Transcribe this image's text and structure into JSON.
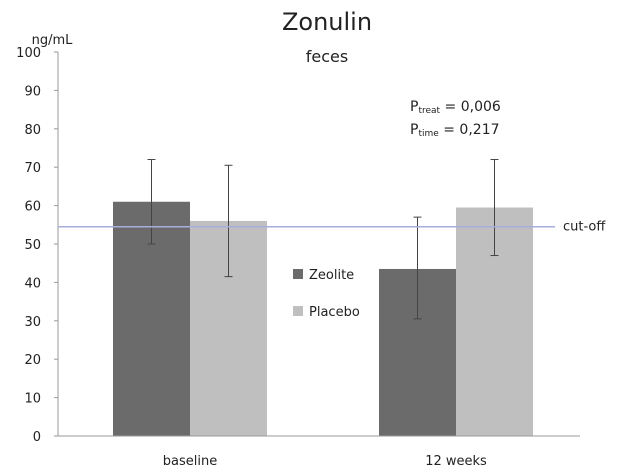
{
  "chart_data": {
    "type": "bar",
    "title": "Zonulin",
    "subtitle": "feces",
    "ylabel": "ng/mL",
    "xlabel": "",
    "ylim": [
      0,
      100
    ],
    "yticks": [
      0,
      10,
      20,
      30,
      40,
      50,
      60,
      70,
      80,
      90,
      100
    ],
    "categories": [
      "baseline",
      "12 weeks"
    ],
    "series": [
      {
        "name": "Zeolite",
        "color": "#6b6b6b",
        "values": [
          61,
          43.5
        ],
        "error_low": [
          50,
          30.5
        ],
        "error_high": [
          72,
          57
        ]
      },
      {
        "name": "Placebo",
        "color": "#bfbfbf",
        "values": [
          56,
          59.5
        ],
        "error_low": [
          41.5,
          47
        ],
        "error_high": [
          70.5,
          72
        ]
      }
    ],
    "reference_line": {
      "value": 54.5,
      "label": "cut-off",
      "color": "#a7aedb"
    },
    "annotation": {
      "lines": [
        {
          "main": "P",
          "sub": "treat",
          "rest": " = 0,006"
        },
        {
          "main": "P",
          "sub": "time",
          "rest": " = 0,217"
        }
      ]
    },
    "legend_position": "center",
    "grid": false
  }
}
